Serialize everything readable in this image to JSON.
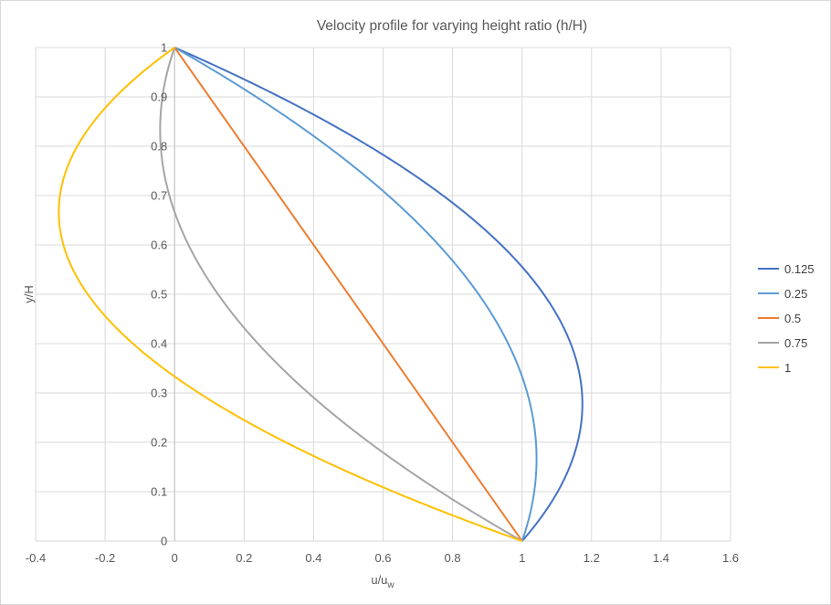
{
  "chart_data": {
    "type": "line",
    "title": "Velocity profile for varying height ratio (h/H)",
    "xlabel": {
      "main": "u/u",
      "sub": "w"
    },
    "ylabel": "y/H",
    "xlim": [
      -0.4,
      1.6
    ],
    "ylim": [
      0,
      1
    ],
    "x_ticks": [
      -0.4,
      -0.2,
      0,
      0.2,
      0.4,
      0.6,
      0.8,
      1,
      1.2,
      1.4,
      1.6
    ],
    "x_tick_labels": [
      "-0.4",
      "-0.2",
      "0",
      "0.2",
      "0.4",
      "0.6",
      "0.8",
      "1",
      "1.2",
      "1.4",
      "1.6"
    ],
    "y_ticks": [
      0,
      0.1,
      0.2,
      0.3,
      0.4,
      0.5,
      0.6,
      0.7,
      0.8,
      0.9,
      1
    ],
    "y_tick_labels": [
      "0",
      "0.1",
      "0.2",
      "0.3",
      "0.4",
      "0.5",
      "0.6",
      "0.7",
      "0.8",
      "0.9",
      "1"
    ],
    "grid": true,
    "legend_position": "right",
    "series": [
      {
        "name": "0.125",
        "color": "#4472C4",
        "param": 0.125
      },
      {
        "name": "0.25",
        "color": "#5B9BD5",
        "param": 0.25
      },
      {
        "name": "0.5",
        "color": "#ED7D31",
        "param": 0.5
      },
      {
        "name": "0.75",
        "color": "#A5A5A5",
        "param": 0.75
      },
      {
        "name": "1",
        "color": "#FFC000",
        "param": 1
      }
    ]
  }
}
